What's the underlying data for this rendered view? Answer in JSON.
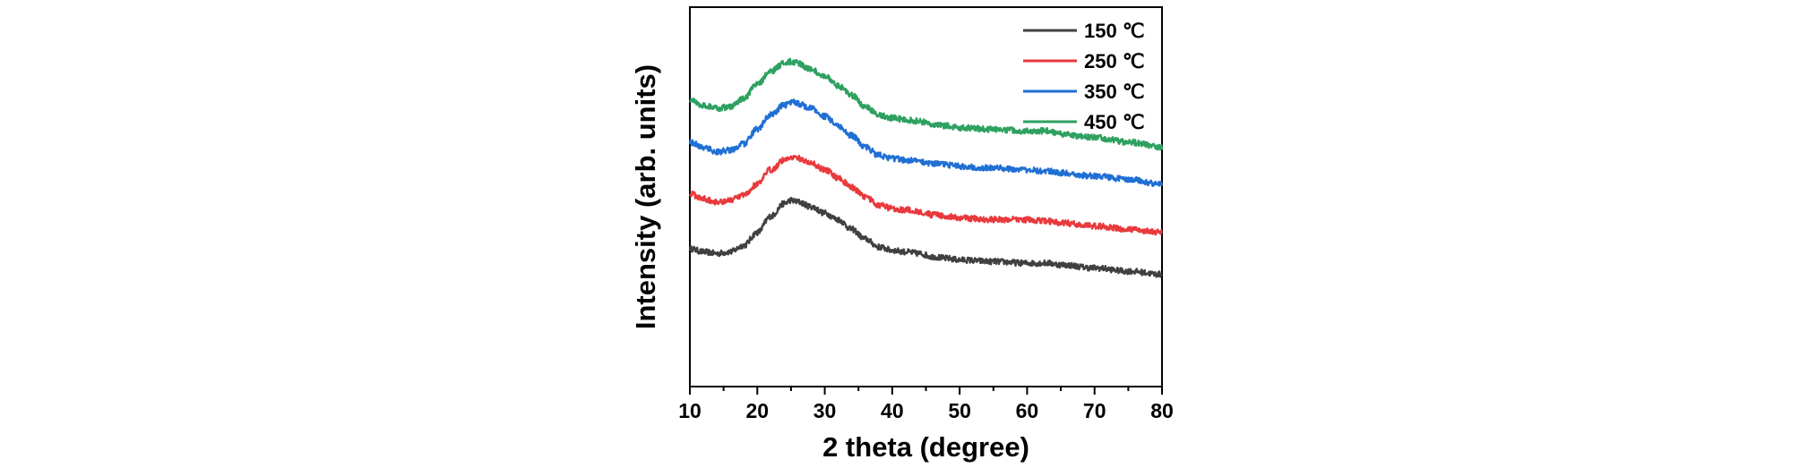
{
  "chart_data": {
    "type": "line",
    "xlabel": "2 theta (degree)",
    "ylabel": "Intensity (arb. units)",
    "xlim": [
      10,
      80
    ],
    "x_ticks": [
      "10",
      "20",
      "30",
      "40",
      "50",
      "60",
      "70",
      "80"
    ],
    "y_ticks_shown": false,
    "grid": false,
    "legend_position": "top-right",
    "x": [
      10,
      12,
      14,
      16,
      18,
      20,
      22,
      24,
      25,
      26,
      28,
      30,
      32,
      34,
      36,
      38,
      40,
      42,
      44,
      46,
      48,
      50,
      55,
      60,
      63,
      65,
      70,
      75,
      80
    ],
    "series": [
      {
        "name": "150 ℃",
        "color": "#404040",
        "values": [
          0.4,
          0.39,
          0.385,
          0.39,
          0.41,
          0.45,
          0.5,
          0.54,
          0.55,
          0.545,
          0.53,
          0.51,
          0.49,
          0.46,
          0.43,
          0.405,
          0.395,
          0.39,
          0.385,
          0.375,
          0.37,
          0.365,
          0.36,
          0.355,
          0.355,
          0.35,
          0.34,
          0.33,
          0.32
        ]
      },
      {
        "name": "250 ℃",
        "color": "#e8393c",
        "values": [
          0.57,
          0.555,
          0.545,
          0.55,
          0.565,
          0.6,
          0.645,
          0.675,
          0.685,
          0.68,
          0.665,
          0.645,
          0.62,
          0.59,
          0.56,
          0.535,
          0.525,
          0.52,
          0.515,
          0.505,
          0.5,
          0.495,
          0.49,
          0.49,
          0.485,
          0.48,
          0.47,
          0.46,
          0.45
        ]
      },
      {
        "name": "350 ℃",
        "color": "#1f6fd4",
        "values": [
          0.73,
          0.715,
          0.7,
          0.705,
          0.725,
          0.77,
          0.815,
          0.845,
          0.855,
          0.85,
          0.835,
          0.81,
          0.78,
          0.75,
          0.715,
          0.69,
          0.68,
          0.675,
          0.67,
          0.665,
          0.66,
          0.655,
          0.65,
          0.645,
          0.64,
          0.635,
          0.625,
          0.615,
          0.6
        ]
      },
      {
        "name": "450 ℃",
        "color": "#2ea060",
        "values": [
          0.86,
          0.845,
          0.835,
          0.84,
          0.865,
          0.91,
          0.95,
          0.975,
          0.98,
          0.975,
          0.955,
          0.935,
          0.905,
          0.875,
          0.84,
          0.815,
          0.805,
          0.8,
          0.795,
          0.785,
          0.78,
          0.775,
          0.77,
          0.765,
          0.765,
          0.755,
          0.745,
          0.73,
          0.715
        ]
      }
    ]
  }
}
